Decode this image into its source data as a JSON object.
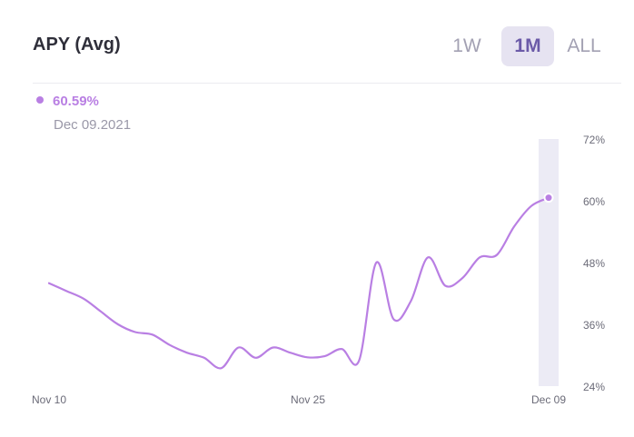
{
  "header": {
    "title": "APY (Avg)",
    "ranges": [
      {
        "label": "1W",
        "selected": false
      },
      {
        "label": "1M",
        "selected": true
      },
      {
        "label": "ALL",
        "selected": false
      }
    ]
  },
  "tooltip": {
    "value": "60.59%",
    "date": "Dec 09.2021"
  },
  "colors": {
    "line": "#b97fe3",
    "accent": "#6b5aa8",
    "highlight": "#ecebf5"
  },
  "chart_data": {
    "type": "line",
    "title": "APY (Avg)",
    "xlabel": "",
    "ylabel": "",
    "xlim": [
      "2021-11-10",
      "2021-12-09"
    ],
    "ylim": [
      24,
      72
    ],
    "grid": false,
    "y_ticks": [
      "72%",
      "60%",
      "48%",
      "36%",
      "24%"
    ],
    "x_ticks": [
      {
        "date": "2021-11-10",
        "label": "Nov 10"
      },
      {
        "date": "2021-11-25",
        "label": "Nov 25"
      },
      {
        "date": "2021-12-09",
        "label": "Dec 09"
      }
    ],
    "series": [
      {
        "values": [
          [
            "2021-11-10",
            44.0
          ],
          [
            "2021-11-11",
            42.5
          ],
          [
            "2021-11-12",
            41.0
          ],
          [
            "2021-11-13",
            38.5
          ],
          [
            "2021-11-14",
            36.0
          ],
          [
            "2021-11-15",
            34.5
          ],
          [
            "2021-11-16",
            34.0
          ],
          [
            "2021-11-17",
            32.0
          ],
          [
            "2021-11-18",
            30.5
          ],
          [
            "2021-11-19",
            29.5
          ],
          [
            "2021-11-20",
            27.5
          ],
          [
            "2021-11-21",
            31.5
          ],
          [
            "2021-11-22",
            29.5
          ],
          [
            "2021-11-23",
            31.5
          ],
          [
            "2021-11-24",
            30.5
          ],
          [
            "2021-11-25",
            29.6
          ],
          [
            "2021-11-26",
            29.8
          ],
          [
            "2021-11-27",
            31.2
          ],
          [
            "2021-11-28",
            29.0
          ],
          [
            "2021-11-29",
            48.0
          ],
          [
            "2021-11-30",
            37.0
          ],
          [
            "2021-12-01",
            40.5
          ],
          [
            "2021-12-02",
            49.0
          ],
          [
            "2021-12-03",
            43.5
          ],
          [
            "2021-12-04",
            45.0
          ],
          [
            "2021-12-05",
            49.0
          ],
          [
            "2021-12-06",
            49.5
          ],
          [
            "2021-12-07",
            55.0
          ],
          [
            "2021-12-08",
            59.0
          ],
          [
            "2021-12-09",
            60.59
          ]
        ]
      }
    ],
    "selected_point": {
      "date": "2021-12-09",
      "value": 60.59
    }
  }
}
